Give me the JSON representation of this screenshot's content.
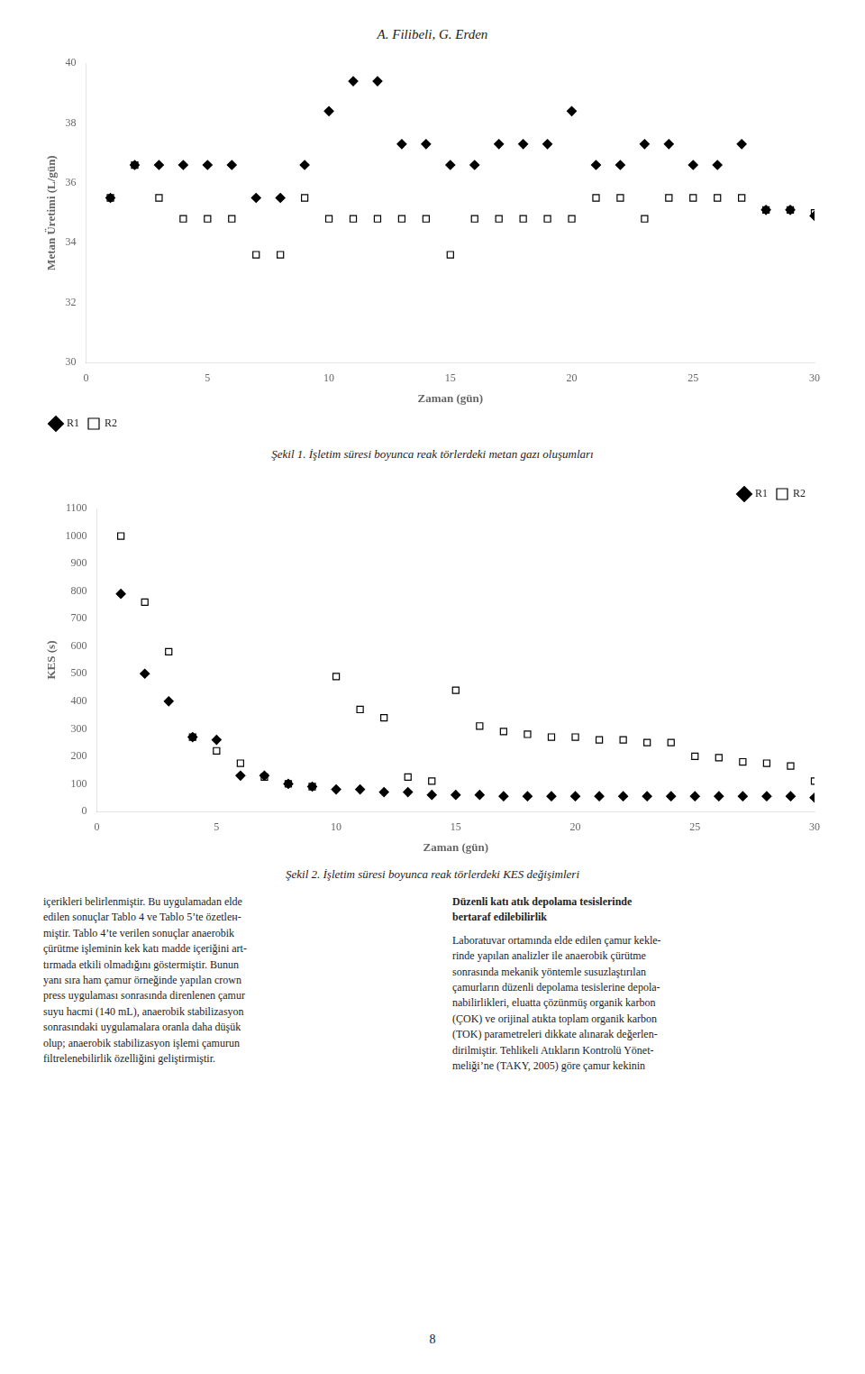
{
  "header": "A. Filibeli, G. Erden",
  "chart_data": [
    {
      "type": "scatter",
      "xlabel": "Zaman (gün)",
      "ylabel": "Metan Üretimi (L/gün)",
      "x": [
        1,
        2,
        3,
        4,
        5,
        6,
        7,
        8,
        9,
        10,
        11,
        12,
        13,
        14,
        15,
        16,
        17,
        18,
        19,
        20,
        21,
        22,
        23,
        24,
        25,
        26,
        27,
        28,
        29,
        30
      ],
      "series": [
        {
          "name": "R1",
          "color": "#000000",
          "marker": "diamond",
          "values": [
            35.5,
            36.6,
            36.6,
            36.6,
            36.6,
            36.6,
            35.5,
            35.5,
            36.6,
            38.4,
            39.4,
            39.4,
            37.3,
            37.3,
            36.6,
            36.6,
            37.3,
            37.3,
            37.3,
            38.4,
            36.6,
            36.6,
            37.3,
            37.3,
            36.6,
            36.6,
            37.3,
            35.1,
            35.1,
            34.9
          ]
        },
        {
          "name": "R2",
          "color": "#ffffff",
          "marker": "square",
          "values": [
            35.5,
            36.6,
            35.5,
            34.8,
            34.8,
            34.8,
            33.6,
            33.6,
            35.5,
            34.8,
            34.8,
            34.8,
            34.8,
            34.8,
            33.6,
            34.8,
            34.8,
            34.8,
            34.8,
            34.8,
            35.5,
            35.5,
            34.8,
            35.5,
            35.5,
            35.5,
            35.5,
            35.1,
            35.1,
            35.0
          ]
        }
      ],
      "xlim": [
        0,
        30
      ],
      "xticks": [
        0,
        5,
        10,
        15,
        20,
        25,
        30
      ],
      "ylim": [
        30,
        40
      ],
      "yticks": [
        30,
        32,
        34,
        36,
        38,
        40
      ],
      "grid": false,
      "legend": "lower left",
      "caption": "Şekil 1. İşletim süresi boyunca reak törlerdeki metan gazı oluşumları"
    },
    {
      "type": "scatter",
      "xlabel": "Zaman (gün)",
      "ylabel": "KES (s)",
      "x": [
        1,
        2,
        3,
        4,
        5,
        6,
        7,
        8,
        9,
        10,
        11,
        12,
        13,
        14,
        15,
        16,
        17,
        18,
        19,
        20,
        21,
        22,
        23,
        24,
        25,
        26,
        27,
        28,
        29,
        30
      ],
      "series": [
        {
          "name": "R1",
          "color": "#000000",
          "marker": "diamond",
          "values": [
            790,
            500,
            400,
            270,
            260,
            130,
            130,
            100,
            90,
            80,
            80,
            70,
            70,
            60,
            60,
            60,
            55,
            55,
            55,
            55,
            55,
            55,
            55,
            55,
            55,
            55,
            55,
            55,
            55,
            50
          ]
        },
        {
          "name": "R2",
          "color": "#ffffff",
          "marker": "square",
          "values": [
            1000,
            760,
            580,
            270,
            220,
            175,
            125,
            100,
            90,
            490,
            370,
            340,
            125,
            110,
            440,
            310,
            290,
            280,
            270,
            270,
            260,
            260,
            250,
            250,
            200,
            195,
            180,
            175,
            165,
            110
          ]
        }
      ],
      "xlim": [
        0,
        30
      ],
      "xticks": [
        0,
        5,
        10,
        15,
        20,
        25,
        30
      ],
      "ylim": [
        0,
        1100
      ],
      "yticks": [
        0,
        100,
        200,
        300,
        400,
        500,
        600,
        700,
        800,
        900,
        1000,
        1100
      ],
      "grid": false,
      "legend": "upper right",
      "caption": "Şekil 2. İşletim süresi boyunca reak törlerdeki KES değişimleri"
    }
  ],
  "text_left": [
    "içerikleri belirlenmiştir. Bu uygulamadan elde",
    "edilen sonuçlar Tablo 4 ve Tablo 5’te özetlен-",
    "miştir. Tablo 4’te verilen sonuçlar anaerobik",
    "çürütme işleminin kek katı madde içeriğini art-",
    "tırmada etkili olmadığını göstermiştir. Bunun",
    "yanı sıra ham çamur örneğinde yapılan crown",
    "press uygulaması sonrasında direnlenen çamur",
    "suyu hacmi (140 mL), anaerobik stabilizasyon",
    "sonrasındaki uygulamalara oranla daha düşük",
    "olup; anaerobik stabilizasyon işlemi çamurun",
    "filtrelenebilirlik özelliğini geliştirmiştir."
  ],
  "text_right_heading": [
    "Düzenli katı atık depolama tesislerinde",
    "bertaraf edilebilirlik"
  ],
  "text_right": [
    "Laboratuvar ortamında elde edilen çamur kekle-",
    "rinde yapılan analizler ile anaerobik çürütme",
    "sonrasında mekanik yöntemle susuzlaştırılan",
    "çamurların düzenli depolama tesislerine depola-",
    "nabilirlikleri, eluatta çözünmüş organik karbon",
    "(ÇOK) ve orijinal atıkta toplam organik karbon",
    "(TOK) parametreleri dikkate alınarak değerlen-",
    "dirilmiştir. Tehlikeli Atıkların Kontrolü Yönet-",
    "meliği’ne (TAKY, 2005) göre çamur kekinin"
  ],
  "page_number": "8"
}
